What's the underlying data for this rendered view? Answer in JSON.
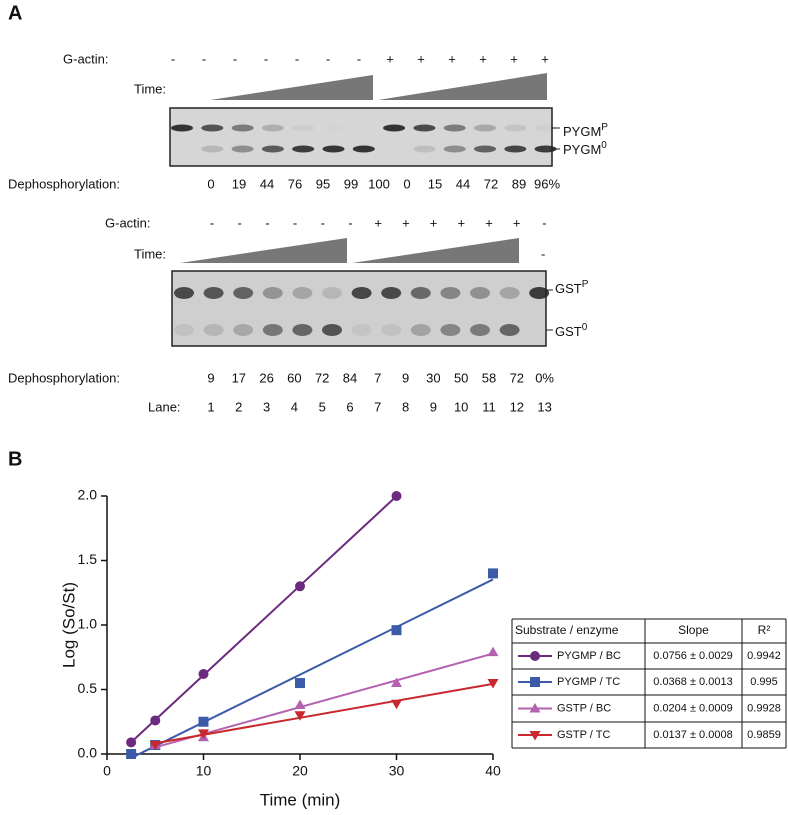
{
  "panel_a": {
    "label": "A",
    "gel1": {
      "g_actin_label": "G-actin:",
      "g_actin": [
        "-",
        "-",
        "-",
        "-",
        "-",
        "-",
        "-",
        "+",
        "+",
        "+",
        "+",
        "+",
        "+"
      ],
      "time_label": "Time:",
      "band_upper": {
        "base": "PYGM",
        "sup": "P"
      },
      "band_lower": {
        "base": "PYGM",
        "sup": "0"
      },
      "dephos_label": "Dephosphorylation:",
      "dephos": [
        0,
        19,
        44,
        76,
        95,
        99,
        100,
        0,
        15,
        44,
        72,
        89,
        96
      ],
      "dephos_labels": [
        "0",
        "19",
        "44",
        "76",
        "95",
        "99",
        "100",
        "0",
        "15",
        "44",
        "72",
        "89",
        "96%"
      ]
    },
    "gel2": {
      "g_actin_label": "G-actin:",
      "g_actin": [
        "-",
        "-",
        "-",
        "-",
        "-",
        "-",
        "+",
        "+",
        "+",
        "+",
        "+",
        "+",
        "-"
      ],
      "time_label": "Time:",
      "time_lane13": "-",
      "band_upper": {
        "base": "GST",
        "sup": "P"
      },
      "band_lower": {
        "base": "GST",
        "sup": "0"
      },
      "dephos_label": "Dephosphorylation:",
      "dephos": [
        9,
        17,
        26,
        60,
        72,
        84,
        7,
        9,
        30,
        50,
        58,
        72,
        0
      ],
      "dephos_labels": [
        "9",
        "17",
        "26",
        "60",
        "72",
        "84",
        "7",
        "9",
        "30",
        "50",
        "58",
        "72",
        "0%"
      ],
      "lane_label": "Lane:",
      "lanes": [
        1,
        2,
        3,
        4,
        5,
        6,
        7,
        8,
        9,
        10,
        11,
        12,
        13
      ]
    }
  },
  "chart_data": {
    "type": "scatter",
    "panel_label": "B",
    "x_label": "Time (min)",
    "y_label": "Log (So/St)",
    "x": [
      2.5,
      5,
      10,
      20,
      30,
      40
    ],
    "xlim": [
      0,
      40
    ],
    "xticks": [
      0,
      10,
      20,
      30,
      40
    ],
    "ylim": [
      0,
      2
    ],
    "yticks": [
      {
        "value": 0,
        "label": "0.0"
      },
      0.5,
      {
        "value": 1,
        "label": "1.0"
      },
      1.5,
      {
        "value": 2,
        "label": "2.0"
      }
    ],
    "fit_lines": true,
    "table_header": [
      "Substrate / enzyme",
      "Slope",
      "R²"
    ],
    "series": [
      {
        "name": "PYGMP / BC",
        "color": "#6b2a7f",
        "marker": "circle",
        "values": [
          0.09,
          0.26,
          0.62,
          1.3,
          2.0,
          null
        ],
        "slope": "0.0756 ± 0.0029",
        "r2": 0.9942
      },
      {
        "name": "PYGMP / TC",
        "color": "#3b5ba8",
        "marker": "square",
        "values": [
          0,
          0.07,
          0.25,
          0.55,
          0.96,
          1.4
        ],
        "slope": "0.0368 ± 0.0013",
        "r2": 0.995
      },
      {
        "name": "GSTP / BC",
        "color": "#b462b0",
        "marker": "triangle-up",
        "values": [
          null,
          0.07,
          0.13,
          0.38,
          0.55,
          0.79
        ],
        "slope": "0.0204 ± 0.0009",
        "r2": 0.9928
      },
      {
        "name": "GSTP / TC",
        "color": "#c8282e",
        "marker": "triangle-down",
        "values": [
          null,
          0.07,
          0.16,
          0.3,
          0.39,
          0.55
        ],
        "slope": "0.0137 ± 0.0008",
        "r2": 0.9859
      }
    ]
  }
}
